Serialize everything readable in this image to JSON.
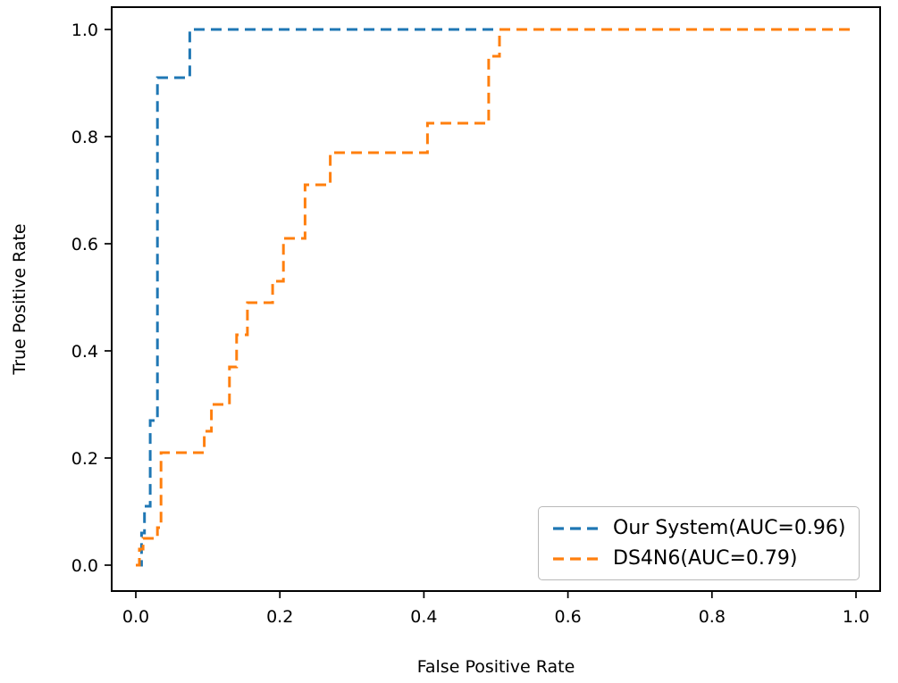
{
  "chart_data": {
    "type": "line",
    "subtype": "roc-step-curves",
    "title": "",
    "xlabel": "False Positive Rate",
    "ylabel": "True Positive Rate",
    "xlim": [
      -0.04,
      1.04
    ],
    "ylim": [
      -0.04,
      1.04
    ],
    "grid": false,
    "legend_position": "lower right",
    "xtick_values": [
      0.0,
      0.2,
      0.4,
      0.6,
      0.8,
      1.0
    ],
    "xtick_labels": [
      "0.0",
      "0.2",
      "0.4",
      "0.6",
      "0.8",
      "1.0"
    ],
    "ytick_values": [
      0.0,
      0.2,
      0.4,
      0.6,
      0.8,
      1.0
    ],
    "ytick_labels": [
      "0.0",
      "0.2",
      "0.4",
      "0.6",
      "0.8",
      "1.0"
    ],
    "series": [
      {
        "name": "Our System",
        "auc": 0.96,
        "label": "Our System(AUC=0.96)",
        "color": "#1f77b4",
        "linestyle": "dashed",
        "x": [
          0,
          0.008,
          0.008,
          0.012,
          0.012,
          0.02,
          0.02,
          0.03,
          0.03,
          0.075,
          0.075,
          1.0
        ],
        "y": [
          0,
          0,
          0.06,
          0.06,
          0.11,
          0.11,
          0.27,
          0.27,
          0.91,
          0.91,
          1.0,
          1.0
        ]
      },
      {
        "name": "DS4N6",
        "auc": 0.79,
        "label": "DS4N6(AUC=0.79)",
        "color": "#ff7f0e",
        "linestyle": "dashed",
        "x": [
          0,
          0.005,
          0.005,
          0.01,
          0.01,
          0.03,
          0.03,
          0.035,
          0.035,
          0.095,
          0.095,
          0.105,
          0.105,
          0.13,
          0.13,
          0.14,
          0.14,
          0.155,
          0.155,
          0.19,
          0.19,
          0.205,
          0.205,
          0.235,
          0.235,
          0.27,
          0.27,
          0.405,
          0.405,
          0.49,
          0.49,
          0.505,
          0.505,
          1.0
        ],
        "y": [
          0,
          0,
          0.03,
          0.03,
          0.05,
          0.05,
          0.07,
          0.07,
          0.21,
          0.21,
          0.25,
          0.25,
          0.3,
          0.3,
          0.37,
          0.37,
          0.43,
          0.43,
          0.49,
          0.49,
          0.53,
          0.53,
          0.61,
          0.61,
          0.71,
          0.71,
          0.77,
          0.77,
          0.825,
          0.825,
          0.95,
          0.95,
          1.0,
          1.0
        ]
      }
    ]
  }
}
